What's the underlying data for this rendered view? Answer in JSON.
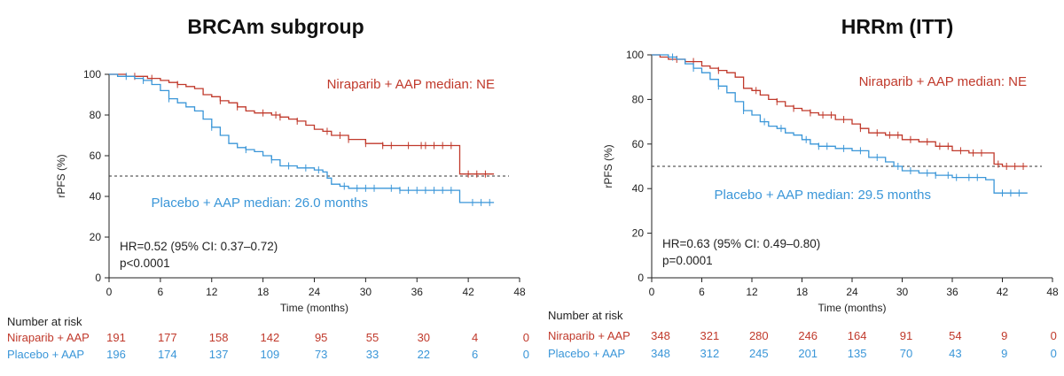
{
  "colors": {
    "niraparib": "#c0392b",
    "placebo": "#3a96d8",
    "axis": "#222222",
    "reference": "#333333"
  },
  "chart_data": [
    {
      "type": "line",
      "subtype": "kaplan-meier",
      "title": "BRCAm subgroup",
      "xlabel": "Time (months)",
      "ylabel": "rPFS (%)",
      "xlim": [
        0,
        48
      ],
      "ylim": [
        0,
        100
      ],
      "x_ticks": [
        "0",
        "6",
        "12",
        "18",
        "24",
        "30",
        "36",
        "42",
        "48"
      ],
      "y_ticks": [
        "0",
        "20",
        "40",
        "60",
        "80",
        "100"
      ],
      "reference_line_y": 50,
      "hr_text": "HR=0.52 (95% CI: 0.37–0.72)",
      "p_text": "p<0.0001",
      "series": [
        {
          "name": "Niraparib + AAP",
          "label": "Niraparib + AAP median: NE",
          "color": "#c0392b",
          "points": [
            [
              0,
              100
            ],
            [
              1.5,
              100
            ],
            [
              2,
              99
            ],
            [
              4,
              99
            ],
            [
              4.5,
              98
            ],
            [
              6,
              97
            ],
            [
              7,
              96
            ],
            [
              8,
              95
            ],
            [
              9,
              94
            ],
            [
              10,
              93
            ],
            [
              11,
              90
            ],
            [
              12,
              89
            ],
            [
              13,
              87
            ],
            [
              14,
              86
            ],
            [
              15,
              84
            ],
            [
              16,
              82
            ],
            [
              17,
              81
            ],
            [
              19,
              80
            ],
            [
              20,
              79
            ],
            [
              21,
              78
            ],
            [
              22,
              77
            ],
            [
              23,
              75
            ],
            [
              24,
              73
            ],
            [
              25,
              72
            ],
            [
              26,
              70
            ],
            [
              28,
              68
            ],
            [
              30,
              66
            ],
            [
              32,
              65
            ],
            [
              34,
              65
            ],
            [
              36,
              65
            ],
            [
              38,
              65
            ],
            [
              41,
              64
            ],
            [
              41,
              51
            ],
            [
              45,
              51
            ]
          ],
          "censor_x": [
            3,
            5,
            8,
            13,
            15,
            18,
            19.5,
            20,
            22,
            25.5,
            27,
            28,
            30,
            32,
            33,
            35,
            36.5,
            37,
            38,
            39,
            40,
            42,
            43,
            44
          ],
          "risk": [
            "191",
            "177",
            "158",
            "142",
            "95",
            "55",
            "30",
            "4",
            "0"
          ]
        },
        {
          "name": "Placebo + AAP",
          "label": "Placebo + AAP median: 26.0 months",
          "color": "#3a96d8",
          "points": [
            [
              0,
              100
            ],
            [
              1,
              99
            ],
            [
              3,
              98
            ],
            [
              4,
              97
            ],
            [
              5,
              95
            ],
            [
              6,
              92
            ],
            [
              7,
              88
            ],
            [
              8,
              86
            ],
            [
              9,
              84
            ],
            [
              10,
              82
            ],
            [
              11,
              78
            ],
            [
              12,
              74
            ],
            [
              13,
              70
            ],
            [
              14,
              66
            ],
            [
              15,
              64
            ],
            [
              16,
              63
            ],
            [
              17,
              62
            ],
            [
              18,
              60
            ],
            [
              19,
              58
            ],
            [
              20,
              55
            ],
            [
              22,
              54
            ],
            [
              24,
              53
            ],
            [
              25,
              52
            ],
            [
              25.5,
              49
            ],
            [
              26,
              46
            ],
            [
              27,
              45
            ],
            [
              28,
              44
            ],
            [
              30,
              44
            ],
            [
              34,
              43
            ],
            [
              36,
              43
            ],
            [
              38,
              43
            ],
            [
              41,
              43
            ],
            [
              41,
              37
            ],
            [
              45,
              37
            ]
          ],
          "censor_x": [
            2,
            4,
            7,
            12,
            16,
            19,
            21,
            23,
            24.5,
            27.5,
            29,
            30,
            31,
            33,
            34,
            35,
            36,
            37,
            38,
            39,
            40,
            42.5,
            43.5,
            44.5
          ],
          "risk": [
            "196",
            "174",
            "137",
            "109",
            "73",
            "33",
            "22",
            "6",
            "0"
          ]
        }
      ],
      "risk_table": {
        "header": "Number at risk",
        "rows": [
          "Niraparib + AAP",
          "Placebo + AAP"
        ]
      }
    },
    {
      "type": "line",
      "subtype": "kaplan-meier",
      "title": "HRRm (ITT)",
      "xlabel": "Time (months)",
      "ylabel": "rPFS (%)",
      "xlim": [
        0,
        48
      ],
      "ylim": [
        0,
        100
      ],
      "x_ticks": [
        "0",
        "6",
        "12",
        "18",
        "24",
        "30",
        "36",
        "42",
        "48"
      ],
      "y_ticks": [
        "0",
        "20",
        "40",
        "60",
        "80",
        "100"
      ],
      "reference_line_y": 50,
      "hr_text": "HR=0.63 (95% CI: 0.49–0.80)",
      "p_text": "p=0.0001",
      "series": [
        {
          "name": "Niraparib + AAP",
          "label": "Niraparib + AAP median: NE",
          "color": "#c0392b",
          "points": [
            [
              0,
              100
            ],
            [
              1,
              99
            ],
            [
              2,
              98
            ],
            [
              4,
              97
            ],
            [
              6,
              95
            ],
            [
              7,
              94
            ],
            [
              8,
              93
            ],
            [
              9,
              92
            ],
            [
              10,
              90
            ],
            [
              11,
              85
            ],
            [
              12,
              84
            ],
            [
              13,
              82
            ],
            [
              14,
              80
            ],
            [
              15,
              79
            ],
            [
              16,
              77
            ],
            [
              17,
              76
            ],
            [
              18,
              75
            ],
            [
              19,
              74
            ],
            [
              20,
              73
            ],
            [
              22,
              71
            ],
            [
              24,
              69
            ],
            [
              25,
              67
            ],
            [
              26,
              65
            ],
            [
              28,
              64
            ],
            [
              30,
              62
            ],
            [
              32,
              61
            ],
            [
              34,
              59
            ],
            [
              36,
              57
            ],
            [
              38,
              56
            ],
            [
              40,
              56
            ],
            [
              41,
              51
            ],
            [
              42,
              50
            ],
            [
              45,
              50
            ]
          ],
          "censor_x": [
            3,
            5,
            8,
            12.5,
            15,
            17,
            19,
            20.5,
            21.5,
            23,
            25,
            27,
            28.5,
            29.5,
            31,
            33,
            34.5,
            35.5,
            37,
            38.5,
            39.5,
            41.5,
            42.5,
            43.5,
            44.5
          ],
          "risk": [
            "348",
            "321",
            "280",
            "246",
            "164",
            "91",
            "54",
            "9",
            "0"
          ]
        },
        {
          "name": "Placebo + AAP",
          "label": "Placebo + AAP median: 29.5 months",
          "color": "#3a96d8",
          "points": [
            [
              0,
              100
            ],
            [
              2,
              99
            ],
            [
              3,
              98
            ],
            [
              4,
              96
            ],
            [
              5,
              94
            ],
            [
              6,
              92
            ],
            [
              7,
              89
            ],
            [
              8,
              86
            ],
            [
              9,
              83
            ],
            [
              10,
              79
            ],
            [
              11,
              75
            ],
            [
              12,
              73
            ],
            [
              13,
              70
            ],
            [
              14,
              68
            ],
            [
              15,
              67
            ],
            [
              16,
              65
            ],
            [
              17,
              64
            ],
            [
              18,
              62
            ],
            [
              19,
              60
            ],
            [
              20,
              59
            ],
            [
              22,
              58
            ],
            [
              24,
              57
            ],
            [
              26,
              54
            ],
            [
              28,
              52
            ],
            [
              29,
              50
            ],
            [
              30,
              48
            ],
            [
              32,
              47
            ],
            [
              34,
              46
            ],
            [
              36,
              45
            ],
            [
              38,
              45
            ],
            [
              40,
              44
            ],
            [
              41,
              38
            ],
            [
              45,
              38
            ]
          ],
          "censor_x": [
            2.5,
            5,
            8,
            11,
            13.5,
            15.5,
            18.5,
            20,
            21,
            23,
            25,
            27,
            29.5,
            31,
            33,
            34,
            35.5,
            36.5,
            38,
            39,
            42,
            43,
            44
          ],
          "risk": [
            "348",
            "312",
            "245",
            "201",
            "135",
            "70",
            "43",
            "9",
            "0"
          ]
        }
      ],
      "risk_table": {
        "header": "Number at risk",
        "rows": [
          "Niraparib + AAP",
          "Placebo + AAP"
        ]
      }
    }
  ]
}
